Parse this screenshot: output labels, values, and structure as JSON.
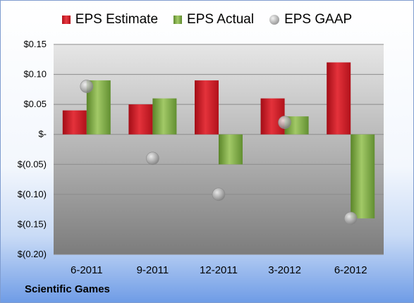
{
  "legend": {
    "estimate": "EPS Estimate",
    "actual": "EPS Actual",
    "gaap": "EPS GAAP"
  },
  "company": "Scientific Games",
  "colors": {
    "estimate": "#d81f28",
    "actual": "#87b04b",
    "gaap": "#b4b4b4"
  },
  "chart_data": {
    "type": "bar",
    "categories": [
      "6-2011",
      "9-2011",
      "12-2011",
      "3-2012",
      "6-2012"
    ],
    "series": [
      {
        "name": "EPS Estimate",
        "type": "bar",
        "values": [
          0.04,
          0.05,
          0.09,
          0.06,
          0.12
        ]
      },
      {
        "name": "EPS Actual",
        "type": "bar",
        "values": [
          0.09,
          0.06,
          -0.05,
          0.03,
          -0.14
        ]
      },
      {
        "name": "EPS GAAP",
        "type": "scatter",
        "values": [
          0.08,
          -0.04,
          -0.1,
          0.02,
          -0.14
        ]
      }
    ],
    "yticks": [
      0.15,
      0.1,
      0.05,
      0,
      -0.05,
      -0.1,
      -0.15,
      -0.2
    ],
    "ytick_labels": [
      "$0.15",
      "$0.10",
      "$0.05",
      "$-",
      "$(0.05)",
      "$(0.10)",
      "$(0.15)",
      "$(0.20)"
    ],
    "ylim": [
      -0.2,
      0.15
    ],
    "grid": true,
    "legend_position": "top"
  }
}
